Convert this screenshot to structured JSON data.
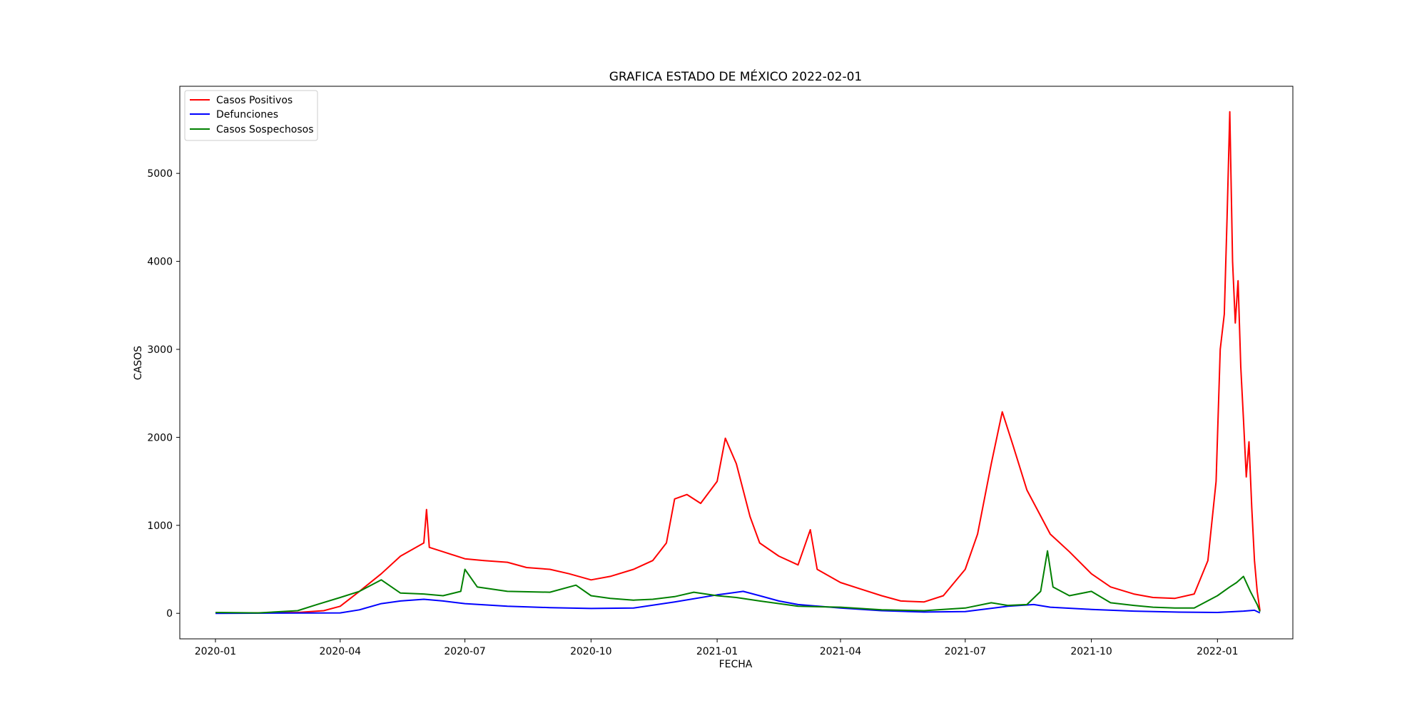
{
  "chart_data": {
    "type": "line",
    "title": "GRAFICA ESTADO DE MÉXICO 2022-02-01",
    "xlabel": "FECHA",
    "ylabel": "CASOS",
    "xlim": [
      "2019-12-06",
      "2022-02-25"
    ],
    "ylim": [
      -290,
      5990
    ],
    "x_ticks": [
      "2020-01",
      "2020-04",
      "2020-07",
      "2020-10",
      "2021-01",
      "2021-04",
      "2021-07",
      "2021-10",
      "2022-01"
    ],
    "y_ticks": [
      0,
      1000,
      2000,
      3000,
      4000,
      5000
    ],
    "grid": false,
    "legend_position": "top-left",
    "series": [
      {
        "name": "Casos Positivos",
        "color": "#ff0000",
        "points": [
          [
            "2020-01-01",
            5
          ],
          [
            "2020-02-01",
            5
          ],
          [
            "2020-03-01",
            10
          ],
          [
            "2020-03-20",
            30
          ],
          [
            "2020-04-01",
            80
          ],
          [
            "2020-04-15",
            250
          ],
          [
            "2020-05-01",
            450
          ],
          [
            "2020-05-15",
            650
          ],
          [
            "2020-06-01",
            800
          ],
          [
            "2020-06-03",
            1180
          ],
          [
            "2020-06-05",
            750
          ],
          [
            "2020-06-15",
            700
          ],
          [
            "2020-07-01",
            620
          ],
          [
            "2020-07-15",
            600
          ],
          [
            "2020-08-01",
            580
          ],
          [
            "2020-08-15",
            520
          ],
          [
            "2020-09-01",
            500
          ],
          [
            "2020-09-15",
            450
          ],
          [
            "2020-10-01",
            380
          ],
          [
            "2020-10-15",
            420
          ],
          [
            "2020-11-01",
            500
          ],
          [
            "2020-11-15",
            600
          ],
          [
            "2020-11-25",
            800
          ],
          [
            "2020-12-01",
            1300
          ],
          [
            "2020-12-10",
            1350
          ],
          [
            "2020-12-20",
            1250
          ],
          [
            "2021-01-01",
            1500
          ],
          [
            "2021-01-07",
            1990
          ],
          [
            "2021-01-15",
            1700
          ],
          [
            "2021-01-25",
            1100
          ],
          [
            "2021-02-01",
            800
          ],
          [
            "2021-02-15",
            650
          ],
          [
            "2021-03-01",
            550
          ],
          [
            "2021-03-10",
            950
          ],
          [
            "2021-03-15",
            500
          ],
          [
            "2021-04-01",
            350
          ],
          [
            "2021-04-15",
            280
          ],
          [
            "2021-05-01",
            200
          ],
          [
            "2021-05-15",
            140
          ],
          [
            "2021-06-01",
            130
          ],
          [
            "2021-06-15",
            200
          ],
          [
            "2021-07-01",
            500
          ],
          [
            "2021-07-10",
            900
          ],
          [
            "2021-07-20",
            1700
          ],
          [
            "2021-07-28",
            2290
          ],
          [
            "2021-08-05",
            1900
          ],
          [
            "2021-08-15",
            1400
          ],
          [
            "2021-09-01",
            900
          ],
          [
            "2021-09-15",
            700
          ],
          [
            "2021-10-01",
            450
          ],
          [
            "2021-10-15",
            300
          ],
          [
            "2021-11-01",
            220
          ],
          [
            "2021-11-15",
            180
          ],
          [
            "2021-12-01",
            170
          ],
          [
            "2021-12-15",
            220
          ],
          [
            "2021-12-25",
            600
          ],
          [
            "2021-12-31",
            1500
          ],
          [
            "2022-01-03",
            3000
          ],
          [
            "2022-01-06",
            3400
          ],
          [
            "2022-01-08",
            4500
          ],
          [
            "2022-01-10",
            5700
          ],
          [
            "2022-01-12",
            4000
          ],
          [
            "2022-01-14",
            3300
          ],
          [
            "2022-01-16",
            3780
          ],
          [
            "2022-01-18",
            2800
          ],
          [
            "2022-01-20",
            2200
          ],
          [
            "2022-01-22",
            1550
          ],
          [
            "2022-01-24",
            1950
          ],
          [
            "2022-01-26",
            1200
          ],
          [
            "2022-01-28",
            600
          ],
          [
            "2022-01-30",
            250
          ],
          [
            "2022-02-01",
            30
          ]
        ]
      },
      {
        "name": "Defunciones",
        "color": "#0000ff",
        "points": [
          [
            "2020-01-01",
            0
          ],
          [
            "2020-04-01",
            5
          ],
          [
            "2020-04-15",
            40
          ],
          [
            "2020-05-01",
            110
          ],
          [
            "2020-05-15",
            140
          ],
          [
            "2020-06-01",
            160
          ],
          [
            "2020-06-15",
            140
          ],
          [
            "2020-07-01",
            110
          ],
          [
            "2020-08-01",
            80
          ],
          [
            "2020-09-01",
            65
          ],
          [
            "2020-10-01",
            55
          ],
          [
            "2020-11-01",
            60
          ],
          [
            "2020-12-01",
            130
          ],
          [
            "2021-01-01",
            210
          ],
          [
            "2021-01-20",
            250
          ],
          [
            "2021-02-01",
            200
          ],
          [
            "2021-02-15",
            140
          ],
          [
            "2021-03-01",
            100
          ],
          [
            "2021-04-01",
            60
          ],
          [
            "2021-05-01",
            30
          ],
          [
            "2021-06-01",
            15
          ],
          [
            "2021-07-01",
            20
          ],
          [
            "2021-08-01",
            80
          ],
          [
            "2021-08-20",
            100
          ],
          [
            "2021-09-01",
            70
          ],
          [
            "2021-10-01",
            45
          ],
          [
            "2021-11-01",
            25
          ],
          [
            "2021-12-01",
            15
          ],
          [
            "2022-01-01",
            10
          ],
          [
            "2022-01-20",
            25
          ],
          [
            "2022-01-28",
            35
          ],
          [
            "2022-02-01",
            5
          ]
        ]
      },
      {
        "name": "Casos Sospechosos",
        "color": "#008000",
        "points": [
          [
            "2020-01-01",
            10
          ],
          [
            "2020-02-01",
            5
          ],
          [
            "2020-03-01",
            30
          ],
          [
            "2020-03-15",
            100
          ],
          [
            "2020-04-01",
            180
          ],
          [
            "2020-04-15",
            250
          ],
          [
            "2020-05-01",
            380
          ],
          [
            "2020-05-15",
            230
          ],
          [
            "2020-06-01",
            220
          ],
          [
            "2020-06-15",
            200
          ],
          [
            "2020-06-28",
            250
          ],
          [
            "2020-07-01",
            500
          ],
          [
            "2020-07-10",
            300
          ],
          [
            "2020-08-01",
            250
          ],
          [
            "2020-09-01",
            240
          ],
          [
            "2020-09-20",
            320
          ],
          [
            "2020-10-01",
            200
          ],
          [
            "2020-10-15",
            170
          ],
          [
            "2020-11-01",
            150
          ],
          [
            "2020-11-15",
            160
          ],
          [
            "2020-12-01",
            190
          ],
          [
            "2020-12-15",
            240
          ],
          [
            "2021-01-01",
            200
          ],
          [
            "2021-01-15",
            180
          ],
          [
            "2021-02-01",
            140
          ],
          [
            "2021-03-01",
            80
          ],
          [
            "2021-04-01",
            70
          ],
          [
            "2021-05-01",
            40
          ],
          [
            "2021-06-01",
            30
          ],
          [
            "2021-07-01",
            60
          ],
          [
            "2021-07-20",
            120
          ],
          [
            "2021-08-01",
            90
          ],
          [
            "2021-08-15",
            100
          ],
          [
            "2021-08-25",
            250
          ],
          [
            "2021-08-30",
            710
          ],
          [
            "2021-09-03",
            300
          ],
          [
            "2021-09-15",
            200
          ],
          [
            "2021-10-01",
            250
          ],
          [
            "2021-10-15",
            120
          ],
          [
            "2021-11-01",
            90
          ],
          [
            "2021-11-15",
            70
          ],
          [
            "2021-12-01",
            60
          ],
          [
            "2021-12-15",
            60
          ],
          [
            "2022-01-01",
            200
          ],
          [
            "2022-01-10",
            300
          ],
          [
            "2022-01-15",
            350
          ],
          [
            "2022-01-20",
            420
          ],
          [
            "2022-01-25",
            250
          ],
          [
            "2022-01-30",
            100
          ],
          [
            "2022-02-01",
            20
          ]
        ]
      }
    ]
  }
}
